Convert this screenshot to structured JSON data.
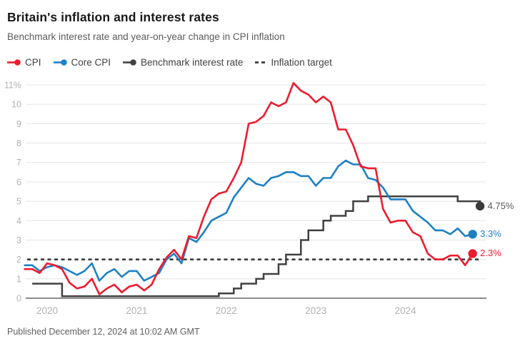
{
  "header": {
    "title": "Britain's inflation and interest rates",
    "subtitle": "Benchmark interest rate and year-on-year change in CPI inflation"
  },
  "legend": {
    "items": [
      {
        "label": "CPI",
        "color": "#ed1b2e",
        "marker": "line-dot"
      },
      {
        "label": "Core CPI",
        "color": "#1d80c3",
        "marker": "line-dot"
      },
      {
        "label": "Benchmark interest rate",
        "color": "#404040",
        "marker": "line-dot"
      },
      {
        "label": "Inflation target",
        "color": "#3b3b3b",
        "marker": "dashed-line"
      }
    ]
  },
  "chart_data": {
    "type": "line",
    "unit": "%",
    "x_start": "2019-10",
    "frequency": "monthly",
    "ylim": [
      0,
      11.4
    ],
    "grid": true,
    "y_tick_labels": [
      "0",
      "1",
      "2",
      "3",
      "4",
      "5",
      "6",
      "7",
      "8",
      "9",
      "10",
      "11%"
    ],
    "x_ticks": [
      {
        "label": "2020",
        "month_index": 3
      },
      {
        "label": "2021",
        "month_index": 15
      },
      {
        "label": "2022",
        "month_index": 27
      },
      {
        "label": "2023",
        "month_index": 39
      },
      {
        "label": "2024",
        "month_index": 51
      }
    ],
    "inflation_target_value": 2,
    "series": [
      {
        "name": "Core CPI",
        "type": "line",
        "color": "#1d80c3",
        "x_offset": 0,
        "values": [
          1.7,
          1.7,
          1.4,
          1.6,
          1.7,
          1.6,
          1.4,
          1.2,
          1.4,
          1.8,
          0.9,
          1.3,
          1.5,
          1.1,
          1.4,
          1.4,
          0.9,
          1.1,
          1.3,
          2.0,
          2.3,
          1.8,
          3.1,
          2.9,
          3.4,
          4.0,
          4.2,
          4.4,
          5.2,
          5.7,
          6.2,
          5.9,
          5.8,
          6.2,
          6.3,
          6.5,
          6.5,
          6.3,
          6.3,
          5.8,
          6.2,
          6.2,
          6.8,
          7.1,
          6.9,
          6.9,
          6.2,
          6.1,
          5.7,
          5.1,
          5.1,
          5.1,
          4.5,
          4.2,
          3.9,
          3.5,
          3.5,
          3.3,
          3.6,
          3.2,
          3.3
        ]
      },
      {
        "name": "CPI",
        "type": "line",
        "color": "#ed1b2e",
        "x_offset": 0,
        "values": [
          1.5,
          1.5,
          1.3,
          1.8,
          1.7,
          1.5,
          0.8,
          0.5,
          0.6,
          1.0,
          0.2,
          0.5,
          0.7,
          0.3,
          0.6,
          0.7,
          0.4,
          0.7,
          1.5,
          2.1,
          2.5,
          2.0,
          3.2,
          3.1,
          4.2,
          5.1,
          5.4,
          5.5,
          6.2,
          7.0,
          9.0,
          9.1,
          9.4,
          10.1,
          9.9,
          10.1,
          11.1,
          10.7,
          10.5,
          10.1,
          10.4,
          10.1,
          8.7,
          8.7,
          7.9,
          6.8,
          6.7,
          6.7,
          4.6,
          3.9,
          4.0,
          4.0,
          3.4,
          3.2,
          2.3,
          2.0,
          2.0,
          2.2,
          2.2,
          1.7,
          2.3
        ]
      },
      {
        "name": "Benchmark interest rate",
        "type": "step",
        "color": "#404040",
        "x_offset": 1,
        "values": [
          0.75,
          0.75,
          0.75,
          0.75,
          0.1,
          0.1,
          0.1,
          0.1,
          0.1,
          0.1,
          0.1,
          0.1,
          0.1,
          0.1,
          0.1,
          0.1,
          0.1,
          0.1,
          0.1,
          0.1,
          0.1,
          0.1,
          0.1,
          0.1,
          0.1,
          0.25,
          0.25,
          0.5,
          0.75,
          0.75,
          1.0,
          1.25,
          1.25,
          1.75,
          2.25,
          2.25,
          3.0,
          3.5,
          3.5,
          4.0,
          4.25,
          4.25,
          4.5,
          5.0,
          5.0,
          5.25,
          5.25,
          5.25,
          5.25,
          5.25,
          5.25,
          5.25,
          5.25,
          5.25,
          5.25,
          5.25,
          5.25,
          5.0,
          5.0,
          5.0,
          4.75
        ]
      },
      {
        "name": "Inflation target",
        "type": "dashed-constant",
        "color": "#3b3b3b",
        "value": 2
      }
    ],
    "end_labels": [
      {
        "text": "4.75%",
        "series": "Benchmark interest rate",
        "value": 4.75,
        "month_index": 61,
        "dot_color": "#3a3a3a",
        "text_color": "#575757"
      },
      {
        "text": "3.3%",
        "series": "Core CPI",
        "value": 3.3,
        "month_index": 60,
        "dot_color": "#1d80c3",
        "text_color": "#1d80c3"
      },
      {
        "text": "2.3%",
        "series": "CPI",
        "value": 2.3,
        "month_index": 60,
        "dot_color": "#ed1b2e",
        "text_color": "#ed1b2e"
      }
    ],
    "style": {
      "grid_color": "#e4e4e4",
      "zero_line_color": "#8c8c8c",
      "axis_text_color": "#b2b1af",
      "target_dash_color": "#3b3b3b"
    }
  },
  "footer": {
    "published": "Published December 12, 2024 at 10:02 AM GMT"
  }
}
